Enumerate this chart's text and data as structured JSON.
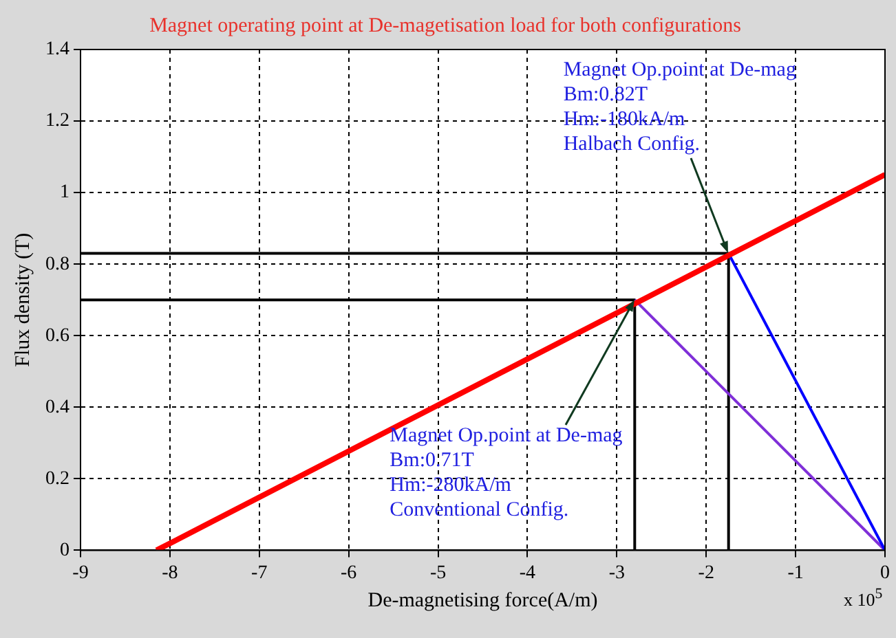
{
  "chart_data": {
    "type": "line",
    "title": "Magnet operating point at De-magetisation load for both configurations",
    "xlabel": "De-magnetising force(A/m)",
    "ylabel": "Flux density (T)",
    "xlim": [
      -9,
      0
    ],
    "xticks": [
      -9,
      -8,
      -7,
      -6,
      -5,
      -4,
      -3,
      -2,
      -1,
      0
    ],
    "ylim": [
      0,
      1.4
    ],
    "yticks": [
      0,
      0.2,
      0.4,
      0.6,
      0.8,
      1,
      1.2,
      1.4
    ],
    "grid": true,
    "legend": false,
    "marker": "none",
    "line_style": "solid",
    "series": [
      {
        "color": "#ff0000",
        "x": [
          -8.15,
          0
        ],
        "values": [
          0,
          1.05
        ]
      },
      {
        "color": "#0000ff",
        "x": [
          -1.75,
          0
        ],
        "values": [
          0.83,
          0
        ]
      },
      {
        "color": "#7f2fd8",
        "x": [
          -2.8,
          0
        ],
        "values": [
          0.7,
          0
        ]
      },
      {
        "color": "#000000",
        "x": [
          -9,
          -1.75,
          -1.75
        ],
        "values": [
          0.83,
          0.83,
          0
        ]
      },
      {
        "color": "#000000",
        "x": [
          -9,
          -2.8,
          -2.8
        ],
        "values": [
          0.7,
          0.7,
          0
        ]
      }
    ],
    "annotations": [
      {
        "text": "Magnet Op.point at De-mag\nBm:0.82T\nHm:-180kA/m\nHalbach Config.",
        "x": -1.75,
        "y": 0.83
      },
      {
        "text": "Magnet Op.point at De-mag\nBm:0.71T\nHm:-280kA/m\nConventional Config.",
        "x": -2.8,
        "y": 0.7
      },
      "x 10$^{5}$"
    ]
  }
}
